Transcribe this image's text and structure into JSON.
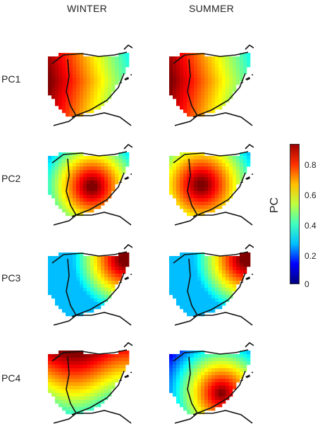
{
  "columns": [
    "WINTER",
    "SUMMER"
  ],
  "rows": [
    "PC1",
    "PC2",
    "PC3",
    "PC4"
  ],
  "colorbar": {
    "label": "PC",
    "ticks": [
      "0",
      "0.2",
      "0.4",
      "0.6",
      "0.8"
    ],
    "colors": [
      "#00007f",
      "#0000ff",
      "#00bfff",
      "#40ffbf",
      "#bfff40",
      "#ffbf00",
      "#ff3000",
      "#a00000"
    ]
  },
  "maps": [
    {
      "season": "WINTER",
      "pc": "PC1",
      "pattern": "west-high"
    },
    {
      "season": "SUMMER",
      "pc": "PC1",
      "pattern": "west-high"
    },
    {
      "season": "WINTER",
      "pc": "PC2",
      "pattern": "center-high"
    },
    {
      "season": "SUMMER",
      "pc": "PC2",
      "pattern": "west-center-high"
    },
    {
      "season": "WINTER",
      "pc": "PC3",
      "pattern": "northeast-high"
    },
    {
      "season": "SUMMER",
      "pc": "PC3",
      "pattern": "northeast-high"
    },
    {
      "season": "WINTER",
      "pc": "PC4",
      "pattern": "north-high"
    },
    {
      "season": "SUMMER",
      "pc": "PC4",
      "pattern": "southeast-high"
    }
  ]
}
